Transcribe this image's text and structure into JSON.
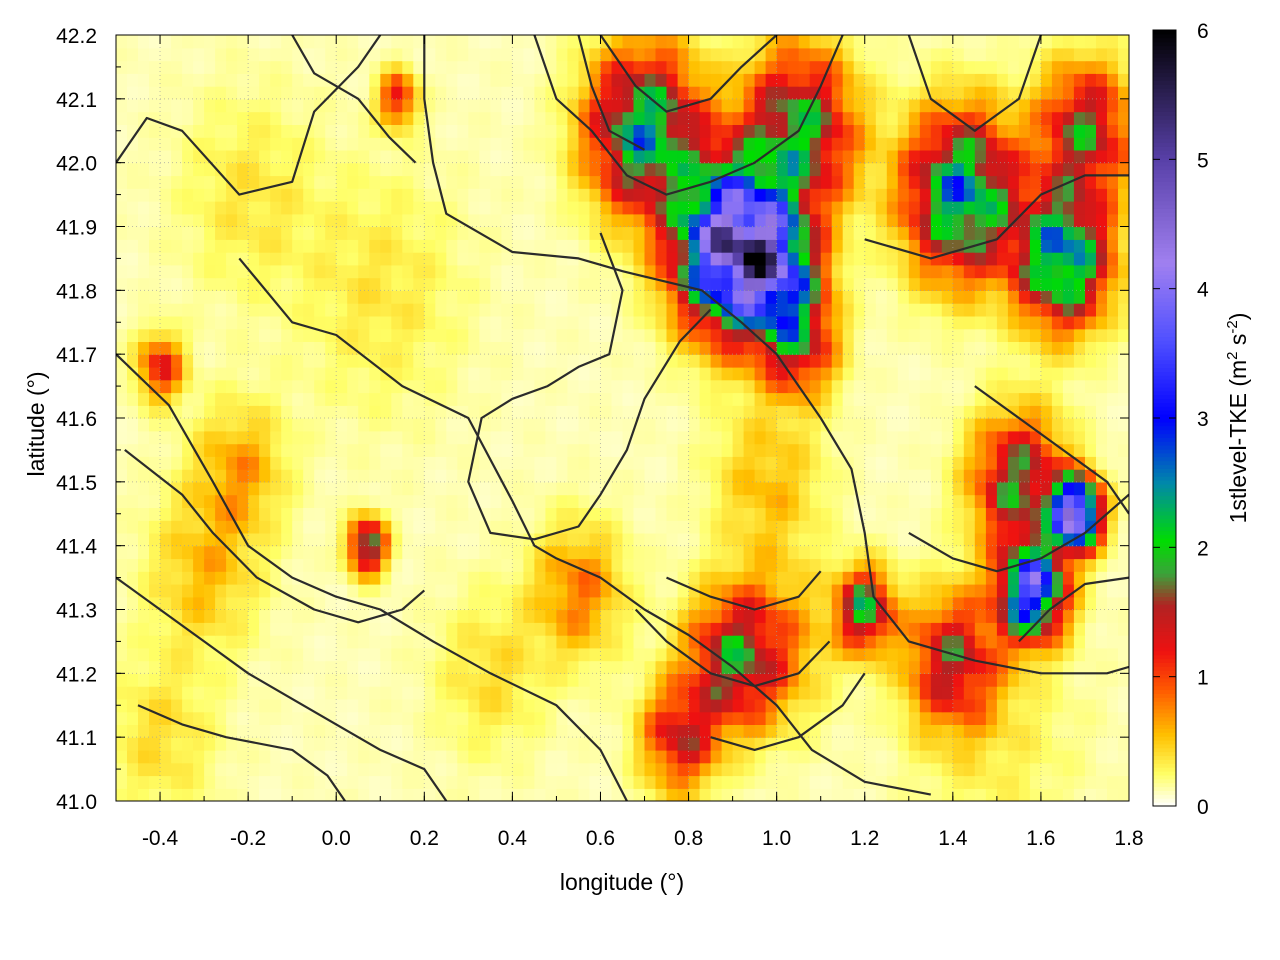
{
  "chart_data": {
    "type": "heatmap",
    "title": "",
    "xlabel": "longitude (°)",
    "ylabel": "latitude (°)",
    "colorbar_label": {
      "main": "1stlevel-TKE (m",
      "sup1": "2",
      "mid": " s",
      "sup2": "-2",
      "end": ")"
    },
    "xlim": [
      -0.5,
      1.8
    ],
    "ylim": [
      41.0,
      42.2
    ],
    "clim": [
      0,
      6
    ],
    "x_ticks": [
      -0.4,
      -0.2,
      0.0,
      0.2,
      0.4,
      0.6,
      0.8,
      1.0,
      1.2,
      1.4,
      1.6,
      1.8
    ],
    "x_tick_labels": [
      "-0.4",
      "-0.2",
      "0.0",
      "0.2",
      "0.4",
      "0.6",
      "0.8",
      "1.0",
      "1.2",
      "1.4",
      "1.6",
      "1.8"
    ],
    "y_ticks": [
      41.0,
      41.1,
      41.2,
      41.3,
      41.4,
      41.5,
      41.6,
      41.7,
      41.8,
      41.9,
      42.0,
      42.1,
      42.2
    ],
    "y_tick_labels": [
      "41.0",
      "41.1",
      "41.2",
      "41.3",
      "41.4",
      "41.5",
      "41.6",
      "41.7",
      "41.8",
      "41.9",
      "42.0",
      "42.1",
      "42.2"
    ],
    "colorbar_ticks": [
      0,
      1,
      2,
      3,
      4,
      5,
      6
    ],
    "colorbar_tick_labels": [
      "0",
      "1",
      "2",
      "3",
      "4",
      "5",
      "6"
    ],
    "colormap": [
      {
        "v": 0.0,
        "c": "#ffffff"
      },
      {
        "v": 0.25,
        "c": "#ffff66"
      },
      {
        "v": 0.55,
        "c": "#ffc000"
      },
      {
        "v": 0.9,
        "c": "#ff5a00"
      },
      {
        "v": 1.2,
        "c": "#ee1111"
      },
      {
        "v": 1.55,
        "c": "#b22222"
      },
      {
        "v": 1.8,
        "c": "#3aa33a"
      },
      {
        "v": 2.05,
        "c": "#00dd00"
      },
      {
        "v": 2.5,
        "c": "#0088aa"
      },
      {
        "v": 3.0,
        "c": "#0000ff"
      },
      {
        "v": 3.6,
        "c": "#5050ff"
      },
      {
        "v": 4.2,
        "c": "#a080f0"
      },
      {
        "v": 5.0,
        "c": "#5840a8"
      },
      {
        "v": 6.0,
        "c": "#000000"
      }
    ],
    "grid": true,
    "legend": "colorbar-right",
    "hotspots": [
      {
        "lon": 0.9,
        "lat": 41.87,
        "tke": 4.6,
        "s": 0.12
      },
      {
        "lon": 1.0,
        "lat": 41.83,
        "tke": 2.2,
        "s": 0.09
      },
      {
        "lon": 1.05,
        "lat": 41.72,
        "tke": 1.4,
        "s": 0.08
      },
      {
        "lon": 0.7,
        "lat": 42.05,
        "tke": 2.3,
        "s": 0.12
      },
      {
        "lon": 1.05,
        "lat": 42.05,
        "tke": 1.9,
        "s": 0.12
      },
      {
        "lon": 1.42,
        "lat": 41.95,
        "tke": 2.5,
        "s": 0.12
      },
      {
        "lon": 1.65,
        "lat": 41.85,
        "tke": 2.6,
        "s": 0.1
      },
      {
        "lon": 1.7,
        "lat": 42.05,
        "tke": 1.6,
        "s": 0.1
      },
      {
        "lon": 1.55,
        "lat": 41.5,
        "tke": 1.7,
        "s": 0.1
      },
      {
        "lon": 1.68,
        "lat": 41.45,
        "tke": 4.8,
        "s": 0.05
      },
      {
        "lon": 1.58,
        "lat": 41.33,
        "tke": 3.5,
        "s": 0.07
      },
      {
        "lon": 1.4,
        "lat": 41.22,
        "tke": 1.4,
        "s": 0.1
      },
      {
        "lon": 1.2,
        "lat": 41.3,
        "tke": 1.9,
        "s": 0.06
      },
      {
        "lon": 0.9,
        "lat": 41.22,
        "tke": 1.5,
        "s": 0.1
      },
      {
        "lon": 0.78,
        "lat": 41.1,
        "tke": 1.3,
        "s": 0.08
      },
      {
        "lon": 0.07,
        "lat": 41.4,
        "tke": 2.0,
        "s": 0.04
      },
      {
        "lon": 0.14,
        "lat": 42.1,
        "tke": 1.2,
        "s": 0.04
      },
      {
        "lon": -0.4,
        "lat": 41.68,
        "tke": 1.1,
        "s": 0.05
      },
      {
        "lon": -0.22,
        "lat": 41.52,
        "tke": 0.55,
        "s": 0.1
      },
      {
        "lon": -0.3,
        "lat": 41.36,
        "tke": 0.45,
        "s": 0.12
      },
      {
        "lon": 0.55,
        "lat": 41.33,
        "tke": 0.7,
        "s": 0.1
      },
      {
        "lon": 0.98,
        "lat": 41.5,
        "tke": 0.45,
        "s": 0.12
      },
      {
        "lon": 1.0,
        "lat": 41.25,
        "tke": 0.55,
        "s": 0.12
      },
      {
        "lon": 0.1,
        "lat": 41.8,
        "tke": 0.25,
        "s": 0.18
      },
      {
        "lon": -0.2,
        "lat": 41.95,
        "tke": 0.25,
        "s": 0.15
      },
      {
        "lon": 0.35,
        "lat": 41.2,
        "tke": 0.3,
        "s": 0.12
      },
      {
        "lon": -0.4,
        "lat": 41.1,
        "tke": 0.3,
        "s": 0.12
      },
      {
        "lon": 1.5,
        "lat": 41.1,
        "tke": 0.2,
        "s": 0.18
      }
    ],
    "contours": [
      [
        [
          -0.5,
          42.0
        ],
        [
          -0.43,
          42.07
        ],
        [
          -0.35,
          42.05
        ],
        [
          -0.22,
          41.95
        ],
        [
          -0.1,
          41.97
        ],
        [
          -0.05,
          42.08
        ],
        [
          0.05,
          42.15
        ],
        [
          0.1,
          42.2
        ]
      ],
      [
        [
          0.2,
          42.2
        ],
        [
          0.2,
          42.1
        ],
        [
          0.22,
          42.0
        ],
        [
          0.25,
          41.92
        ],
        [
          0.4,
          41.86
        ],
        [
          0.55,
          41.85
        ],
        [
          0.65,
          41.83
        ],
        [
          0.83,
          41.8
        ],
        [
          0.92,
          41.75
        ],
        [
          1.0,
          41.7
        ],
        [
          1.1,
          41.6
        ],
        [
          1.17,
          41.52
        ],
        [
          1.2,
          41.42
        ],
        [
          1.22,
          41.32
        ],
        [
          1.3,
          41.25
        ],
        [
          1.45,
          41.22
        ],
        [
          1.6,
          41.2
        ],
        [
          1.75,
          41.2
        ],
        [
          1.8,
          41.21
        ]
      ],
      [
        [
          -0.22,
          41.85
        ],
        [
          -0.1,
          41.75
        ],
        [
          0.0,
          41.73
        ],
        [
          0.15,
          41.65
        ],
        [
          0.3,
          41.6
        ],
        [
          0.4,
          41.47
        ],
        [
          0.45,
          41.4
        ],
        [
          0.5,
          41.38
        ],
        [
          0.6,
          41.35
        ],
        [
          0.7,
          41.3
        ],
        [
          0.8,
          41.26
        ],
        [
          0.9,
          41.21
        ],
        [
          1.0,
          41.15
        ],
        [
          1.08,
          41.08
        ],
        [
          1.2,
          41.03
        ],
        [
          1.35,
          41.01
        ]
      ],
      [
        [
          0.6,
          41.89
        ],
        [
          0.65,
          41.8
        ],
        [
          0.62,
          41.7
        ],
        [
          0.55,
          41.68
        ],
        [
          0.48,
          41.65
        ],
        [
          0.4,
          41.63
        ],
        [
          0.33,
          41.6
        ],
        [
          0.3,
          41.5
        ],
        [
          0.35,
          41.42
        ],
        [
          0.45,
          41.41
        ],
        [
          0.55,
          41.43
        ],
        [
          0.6,
          41.48
        ],
        [
          0.66,
          41.55
        ],
        [
          0.7,
          41.63
        ],
        [
          0.78,
          41.72
        ],
        [
          0.85,
          41.77
        ]
      ],
      [
        [
          -0.5,
          41.7
        ],
        [
          -0.38,
          41.62
        ],
        [
          -0.28,
          41.5
        ],
        [
          -0.2,
          41.4
        ],
        [
          -0.1,
          41.35
        ],
        [
          0.0,
          41.32
        ],
        [
          0.1,
          41.3
        ],
        [
          0.22,
          41.25
        ],
        [
          0.35,
          41.2
        ],
        [
          0.5,
          41.15
        ],
        [
          0.6,
          41.08
        ],
        [
          0.66,
          41.0
        ]
      ],
      [
        [
          -0.48,
          41.55
        ],
        [
          -0.35,
          41.48
        ],
        [
          -0.28,
          41.42
        ],
        [
          -0.18,
          41.35
        ],
        [
          -0.05,
          41.3
        ],
        [
          0.05,
          41.28
        ],
        [
          0.15,
          41.3
        ],
        [
          0.2,
          41.33
        ]
      ],
      [
        [
          -0.5,
          41.35
        ],
        [
          -0.4,
          41.3
        ],
        [
          -0.3,
          41.25
        ],
        [
          -0.2,
          41.2
        ],
        [
          -0.1,
          41.16
        ],
        [
          0.0,
          41.12
        ],
        [
          0.1,
          41.08
        ],
        [
          0.2,
          41.05
        ],
        [
          0.25,
          41.0
        ]
      ],
      [
        [
          -0.45,
          41.15
        ],
        [
          -0.35,
          41.12
        ],
        [
          -0.25,
          41.1
        ],
        [
          -0.1,
          41.08
        ],
        [
          -0.02,
          41.04
        ],
        [
          0.02,
          41.0
        ]
      ],
      [
        [
          0.45,
          42.2
        ],
        [
          0.5,
          42.1
        ],
        [
          0.58,
          42.05
        ],
        [
          0.66,
          41.98
        ],
        [
          0.75,
          41.95
        ],
        [
          0.85,
          41.97
        ],
        [
          0.95,
          42.0
        ],
        [
          1.05,
          42.05
        ],
        [
          1.1,
          42.12
        ],
        [
          1.15,
          42.2
        ]
      ],
      [
        [
          0.6,
          42.2
        ],
        [
          0.68,
          42.12
        ],
        [
          0.75,
          42.08
        ],
        [
          0.85,
          42.1
        ],
        [
          0.92,
          42.15
        ],
        [
          1.0,
          42.2
        ]
      ],
      [
        [
          1.3,
          42.2
        ],
        [
          1.35,
          42.1
        ],
        [
          1.45,
          42.05
        ],
        [
          1.55,
          42.1
        ],
        [
          1.6,
          42.2
        ]
      ],
      [
        [
          1.2,
          41.88
        ],
        [
          1.35,
          41.85
        ],
        [
          1.5,
          41.88
        ],
        [
          1.6,
          41.95
        ],
        [
          1.7,
          41.98
        ],
        [
          1.8,
          41.98
        ]
      ],
      [
        [
          1.45,
          41.65
        ],
        [
          1.55,
          41.6
        ],
        [
          1.65,
          41.55
        ],
        [
          1.75,
          41.5
        ],
        [
          1.8,
          41.45
        ]
      ],
      [
        [
          1.3,
          41.42
        ],
        [
          1.4,
          41.38
        ],
        [
          1.5,
          41.36
        ],
        [
          1.6,
          41.38
        ],
        [
          1.7,
          41.42
        ],
        [
          1.8,
          41.48
        ]
      ],
      [
        [
          0.68,
          41.3
        ],
        [
          0.75,
          41.25
        ],
        [
          0.85,
          41.2
        ],
        [
          0.95,
          41.18
        ],
        [
          1.05,
          41.2
        ],
        [
          1.12,
          41.25
        ]
      ],
      [
        [
          0.75,
          41.35
        ],
        [
          0.85,
          41.32
        ],
        [
          0.95,
          41.3
        ],
        [
          1.05,
          41.32
        ],
        [
          1.1,
          41.36
        ]
      ],
      [
        [
          0.85,
          41.1
        ],
        [
          0.95,
          41.08
        ],
        [
          1.05,
          41.1
        ],
        [
          1.15,
          41.15
        ],
        [
          1.2,
          41.2
        ]
      ],
      [
        [
          -0.1,
          42.2
        ],
        [
          -0.05,
          42.14
        ],
        [
          0.05,
          42.1
        ],
        [
          0.12,
          42.04
        ],
        [
          0.18,
          42.0
        ]
      ],
      [
        [
          0.55,
          42.2
        ],
        [
          0.58,
          42.12
        ],
        [
          0.62,
          42.05
        ],
        [
          0.7,
          42.02
        ]
      ],
      [
        [
          1.55,
          41.25
        ],
        [
          1.62,
          41.3
        ],
        [
          1.7,
          41.34
        ],
        [
          1.8,
          41.35
        ]
      ]
    ]
  }
}
